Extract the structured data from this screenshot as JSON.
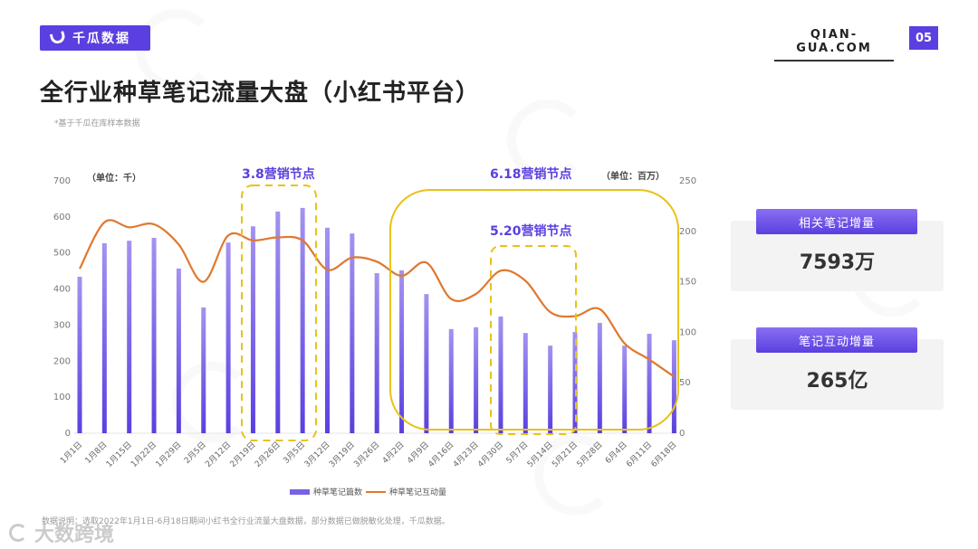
{
  "header": {
    "brand_name": "千瓜数据",
    "site": "QIAN-GUA.COM",
    "page_number": "05",
    "title": "全行业种草笔记流量大盘（小红书平台）",
    "note": "*基于千瓜在库样本数据"
  },
  "chart": {
    "unit_left": "（单位：千）",
    "unit_right": "（单位：百万）",
    "markers": {
      "m38": "3.8营销节点",
      "m618": "6.18营销节点",
      "m520": "5.20营销节点"
    },
    "legend": {
      "bar": "种草笔记篇数",
      "line": "种草笔记互动量"
    }
  },
  "chart_data": {
    "type": "bar",
    "title": "全行业种草笔记流量大盘（小红书平台）",
    "xlabel": "",
    "ylabel": "（单位：千）",
    "ylabel_right": "（单位：百万）",
    "ylim": [
      0,
      700
    ],
    "ylim_right": [
      0,
      250
    ],
    "yticks": [
      0,
      100,
      200,
      300,
      400,
      500,
      600,
      700
    ],
    "yticks_right": [
      0,
      50,
      100,
      150,
      200,
      250
    ],
    "grid": false,
    "legend_position": "bottom",
    "categories": [
      "1月1日",
      "1月8日",
      "1月15日",
      "1月22日",
      "1月29日",
      "2月5日",
      "2月12日",
      "2月19日",
      "2月26日",
      "3月5日",
      "3月12日",
      "3月19日",
      "3月26日",
      "4月2日",
      "4月9日",
      "4月16日",
      "4月23日",
      "4月30日",
      "5月7日",
      "5月14日",
      "5月21日",
      "5月28日",
      "6月4日",
      "6月11日",
      "6月18日"
    ],
    "series": [
      {
        "name": "种草笔记篇数",
        "type": "bar",
        "axis": "left",
        "color": "#7a62e8",
        "values": [
          434,
          527,
          534,
          542,
          457,
          349,
          529,
          574,
          615,
          625,
          570,
          554,
          444,
          452,
          386,
          289,
          294,
          324,
          278,
          243,
          281,
          306,
          243,
          276,
          258
        ]
      },
      {
        "name": "种草笔记互动量",
        "type": "line",
        "axis": "right",
        "color": "#e0782f",
        "values": [
          163,
          209,
          204,
          207,
          187,
          150,
          196,
          191,
          194,
          191,
          162,
          174,
          170,
          156,
          169,
          133,
          138,
          161,
          151,
          120,
          116,
          123,
          89,
          73,
          56
        ]
      }
    ],
    "annotations": [
      {
        "text": "3.8营销节点",
        "range": [
          "2月19日",
          "3月5日"
        ],
        "style": "dashed-box"
      },
      {
        "text": "6.18营销节点",
        "range": [
          "4月2日",
          "6月18日"
        ],
        "style": "solid-box"
      },
      {
        "text": "5.20营销节点",
        "range": [
          "4月30日",
          "5月21日"
        ],
        "style": "dashed-box"
      }
    ]
  },
  "stats": [
    {
      "label": "相关笔记增量",
      "value": "7593万"
    },
    {
      "label": "笔记互动增量",
      "value": "265亿"
    }
  ],
  "footer": {
    "note": "数据说明：选取2022年1月1日-6月18日期间小红书全行业流量大盘数据，部分数据已做脱敏化处理，千瓜数据。",
    "corner_mark": "大数跨境"
  },
  "colors": {
    "accent": "#5b3fe0",
    "bar": "#7a62e8",
    "line": "#e0782f",
    "highlight": "#e8c21a"
  }
}
